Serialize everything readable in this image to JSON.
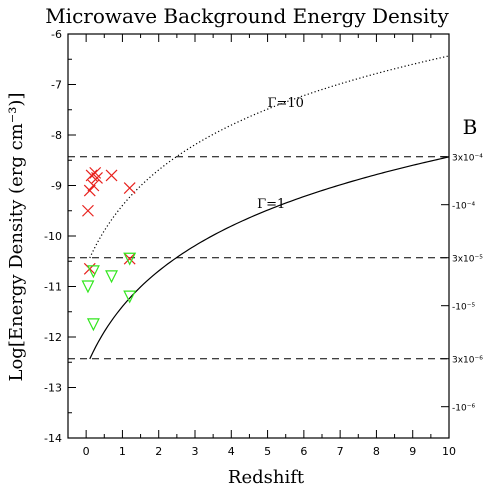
{
  "chart_data": {
    "type": "scatter",
    "title": "Microwave Background Energy Density",
    "xlabel": "Redshift",
    "ylabel": "Log[Energy Density (erg cm⁻³)]",
    "xlim": [
      -0.5,
      10
    ],
    "ylim": [
      -14,
      -6
    ],
    "x_ticks": [
      0,
      1,
      2,
      3,
      4,
      5,
      6,
      7,
      8,
      9,
      10
    ],
    "y_ticks": [
      -14,
      -13,
      -12,
      -11,
      -10,
      -9,
      -8,
      -7,
      -6
    ],
    "right_axis": {
      "label": "B",
      "labels": [
        {
          "text": "3x10⁻⁴",
          "y": -8.43
        },
        {
          "text": "-10⁻⁴",
          "y": -9.38
        },
        {
          "text": "3x10⁻⁵",
          "y": -10.43
        },
        {
          "text": "-10⁻⁵",
          "y": -11.38
        },
        {
          "text": "3x10⁻⁶",
          "y": -12.43
        },
        {
          "text": "-10⁻⁶",
          "y": -13.38
        }
      ]
    },
    "reference_lines": [
      -8.43,
      -10.43,
      -12.43
    ],
    "curves": [
      {
        "label": "Γ=1",
        "style": "solid",
        "x0": 0.1,
        "y_at_z0": -12.6,
        "label_at": [
          5.1,
          -9.45
        ]
      },
      {
        "label": "Γ=10",
        "style": "dotted",
        "x0": 0.1,
        "y_at_z0": -10.6,
        "label_at": [
          5.5,
          -7.45
        ]
      }
    ],
    "series": [
      {
        "marker": "x",
        "color": "#e8211d",
        "points": [
          {
            "x": 0.05,
            "y": -9.5
          },
          {
            "x": 0.1,
            "y": -9.1
          },
          {
            "x": 0.15,
            "y": -8.8
          },
          {
            "x": 0.2,
            "y": -9.0
          },
          {
            "x": 0.25,
            "y": -8.75
          },
          {
            "x": 0.3,
            "y": -8.85
          },
          {
            "x": 0.7,
            "y": -8.8
          },
          {
            "x": 1.2,
            "y": -9.05
          },
          {
            "x": 0.1,
            "y": -10.65
          },
          {
            "x": 1.2,
            "y": -10.45
          }
        ]
      },
      {
        "marker": "triangle-down",
        "color": "#32e61e",
        "points": [
          {
            "x": 0.05,
            "y": -11.0
          },
          {
            "x": 0.2,
            "y": -10.7
          },
          {
            "x": 0.2,
            "y": -11.75
          },
          {
            "x": 0.7,
            "y": -10.8
          },
          {
            "x": 1.2,
            "y": -10.45
          },
          {
            "x": 1.2,
            "y": -11.2
          }
        ]
      }
    ]
  }
}
